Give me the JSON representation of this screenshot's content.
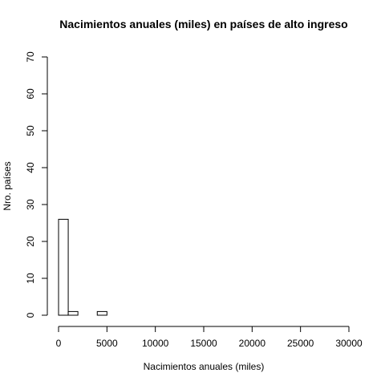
{
  "chart_data": {
    "type": "bar",
    "title": "Nacimientos anuales (miles) en países de alto ingreso",
    "xlabel": "Nacimientos anuales (miles)",
    "ylabel": "Nro. países",
    "xlim": [
      0,
      30000
    ],
    "ylim": [
      0,
      70
    ],
    "xticks": [
      0,
      5000,
      10000,
      15000,
      20000,
      25000,
      30000
    ],
    "yticks": [
      0,
      10,
      20,
      30,
      40,
      50,
      60,
      70
    ],
    "xtick_labels": [
      "0",
      "5000",
      "10000",
      "15000",
      "20000",
      "25000",
      "30000"
    ],
    "ytick_labels": [
      "0",
      "10",
      "20",
      "30",
      "40",
      "50",
      "60",
      "70"
    ],
    "bins": [
      {
        "start": 0,
        "end": 1000,
        "count": 26
      },
      {
        "start": 1000,
        "end": 2000,
        "count": 1
      },
      {
        "start": 2000,
        "end": 3000,
        "count": 0
      },
      {
        "start": 3000,
        "end": 4000,
        "count": 0
      },
      {
        "start": 4000,
        "end": 5000,
        "count": 1
      }
    ],
    "bar_fill": "#ffffff",
    "bar_stroke": "#000000",
    "grid": false,
    "legend": "none"
  }
}
